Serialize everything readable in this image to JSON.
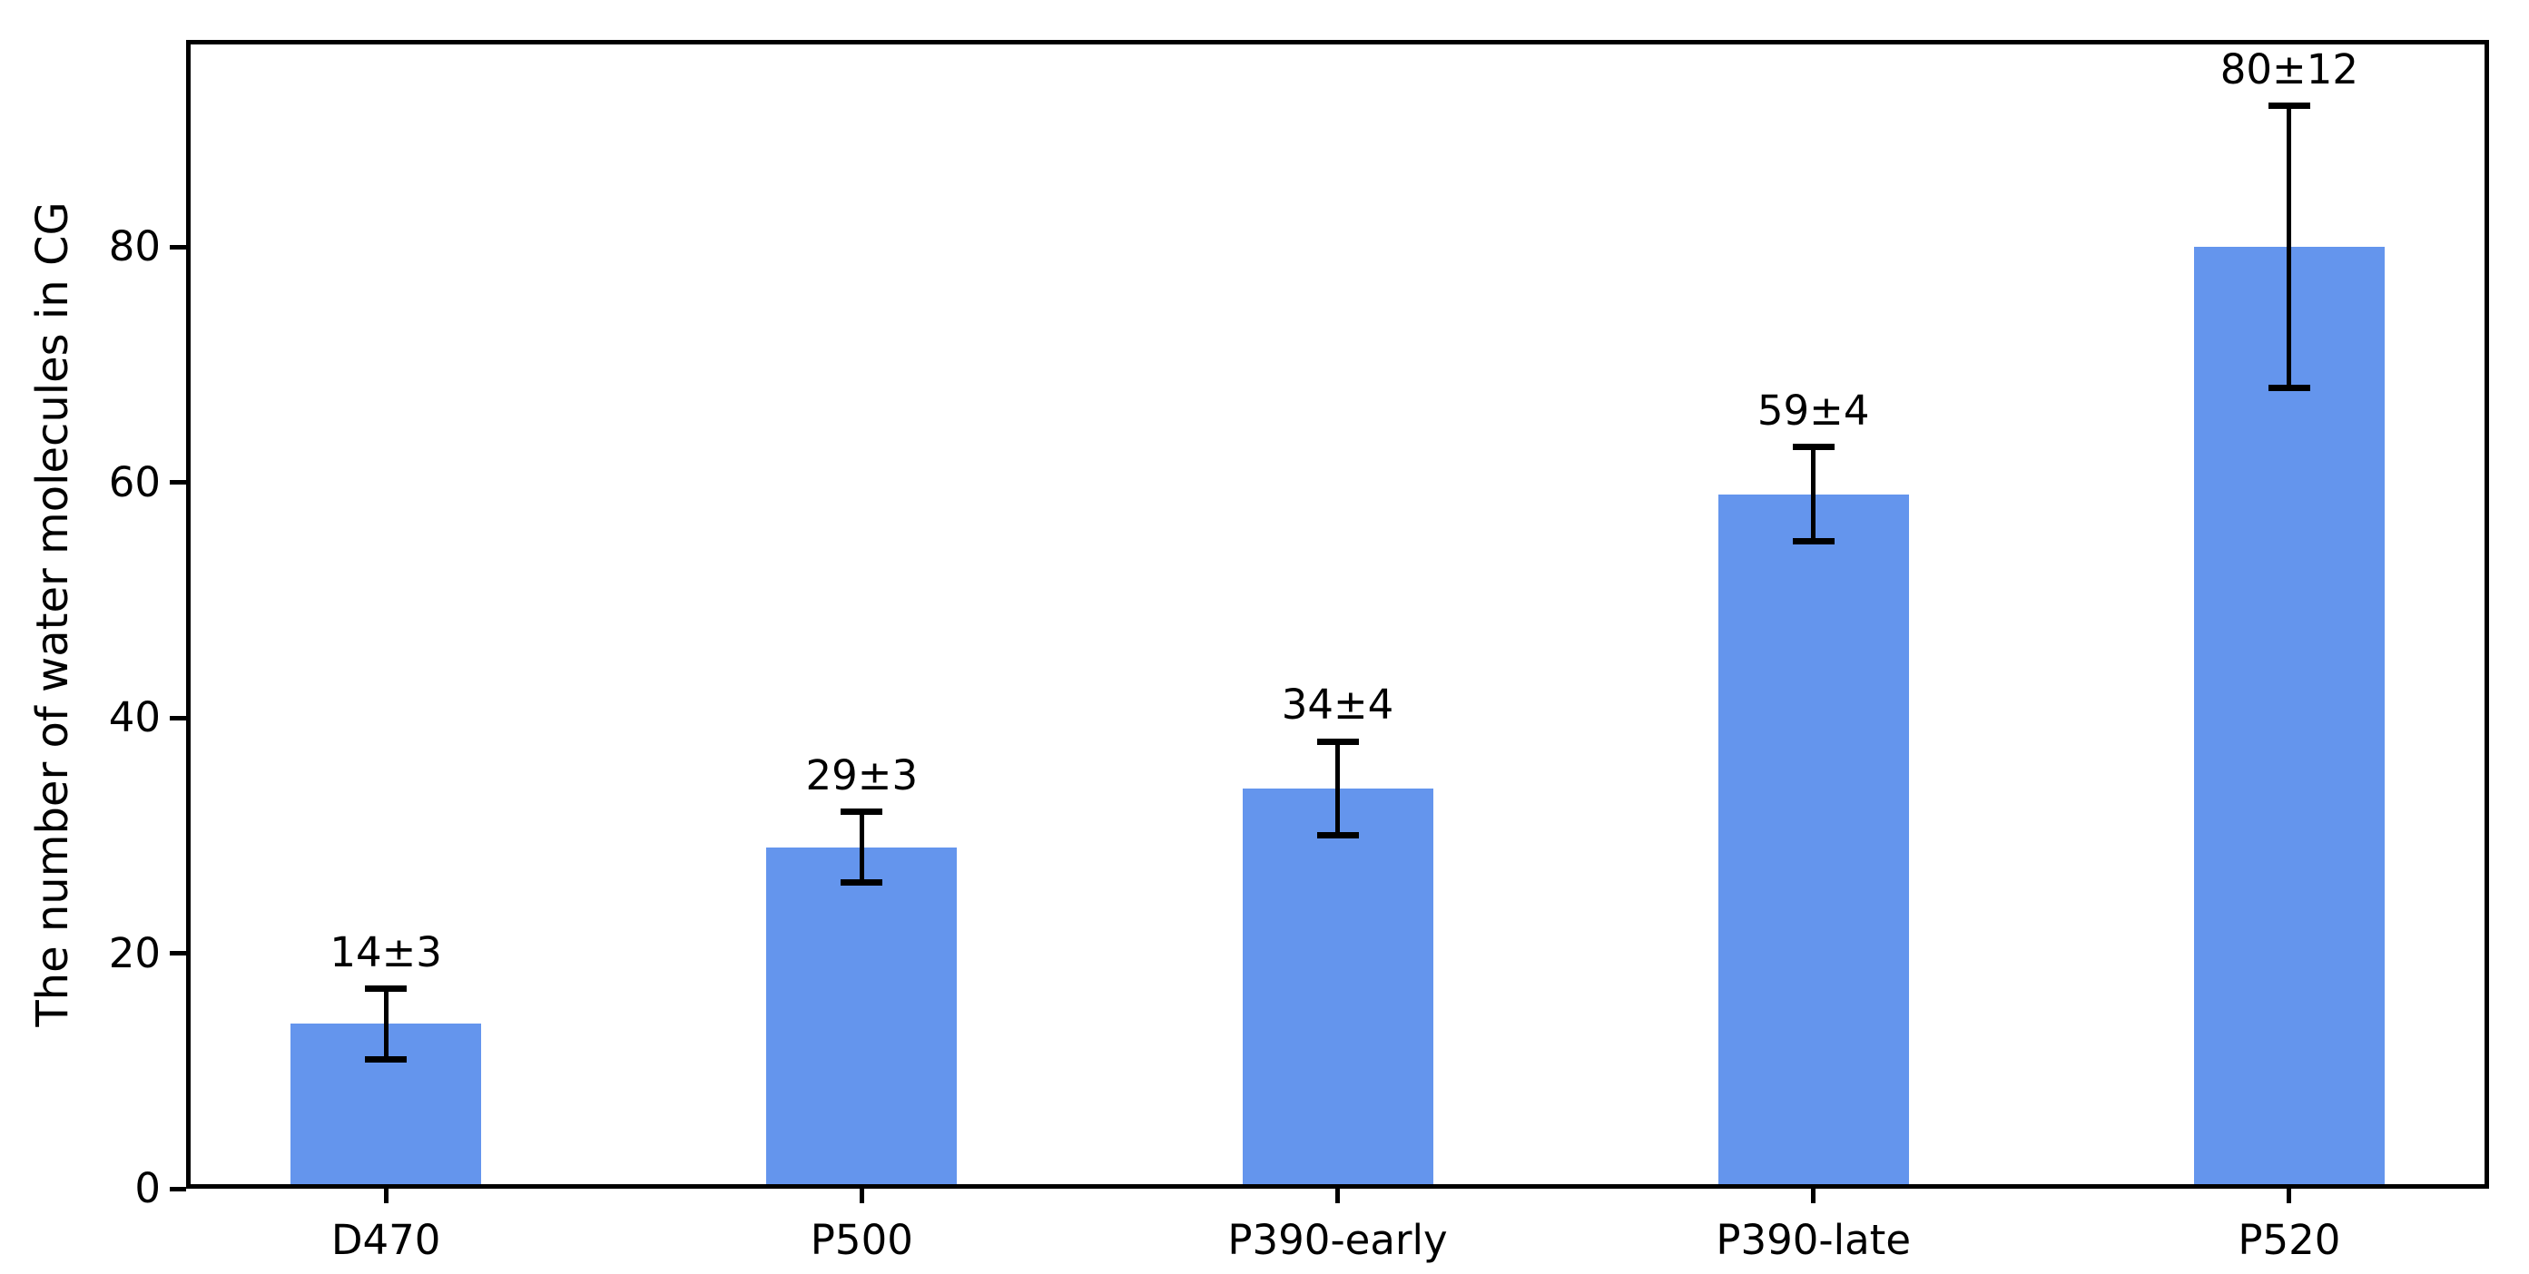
{
  "chart_data": {
    "type": "bar",
    "categories": [
      "D470",
      "P500",
      "P390-early",
      "P390-late",
      "P520"
    ],
    "values": [
      14,
      29,
      34,
      59,
      80
    ],
    "errors": [
      3,
      3,
      4,
      4,
      12
    ],
    "bar_labels": [
      "14±3",
      "29±3",
      "34±4",
      "59±4",
      "80±12"
    ],
    "series": [
      {
        "name": "Number of water molecules in CG",
        "values": [
          14,
          29,
          34,
          59,
          80
        ],
        "errors": [
          3,
          3,
          4,
          4,
          12
        ]
      }
    ],
    "title": "",
    "xlabel": "",
    "ylabel": "The number of water molecules in CG",
    "yticks": [
      0,
      20,
      40,
      60,
      80
    ],
    "ytick_labels": [
      "0",
      "20",
      "40",
      "60",
      "80"
    ],
    "ylim": [
      0,
      97.6
    ],
    "xlim": [
      -0.42,
      4.42
    ],
    "grid": false,
    "legend": null,
    "bar_color": "#6495ED",
    "error_color": "#000000",
    "axis_color": "#000000",
    "background_color": "#ffffff"
  }
}
